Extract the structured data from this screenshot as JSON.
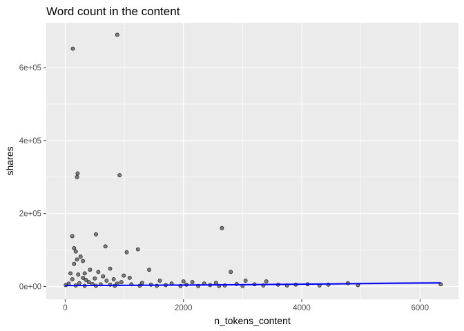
{
  "chart_data": {
    "type": "scatter",
    "title": "Word count in the content",
    "xlabel": "n_tokens_content",
    "ylabel": "shares",
    "xlim": [
      -320,
      6650
    ],
    "ylim": [
      -35000,
      723000
    ],
    "x_ticks": [
      0,
      2000,
      4000,
      6000
    ],
    "x_tick_labels": [
      "0",
      "2000",
      "4000",
      "6000"
    ],
    "y_ticks": [
      0,
      200000,
      400000,
      600000
    ],
    "y_tick_labels": [
      "0e+00",
      "2e+05",
      "4e+05",
      "6e+05"
    ],
    "grid": true,
    "legend": "none",
    "colors": {
      "panel": "#ebebeb",
      "grid_major": "#ffffff",
      "point_fill": "#595959",
      "point_stroke": "#000000",
      "trend_line": "#0000ff",
      "ribbon": "#a3a3d6"
    },
    "points": [
      [
        880,
        690000
      ],
      [
        130,
        652000
      ],
      [
        210,
        310000
      ],
      [
        200,
        300000
      ],
      [
        920,
        305000
      ],
      [
        2650,
        160000
      ],
      [
        520,
        143000
      ],
      [
        120,
        138000
      ],
      [
        680,
        110000
      ],
      [
        1230,
        102000
      ],
      [
        150,
        105000
      ],
      [
        180,
        96000
      ],
      [
        1040,
        94000
      ],
      [
        260,
        82000
      ],
      [
        200,
        74000
      ],
      [
        300,
        70000
      ],
      [
        150,
        62000
      ],
      [
        760,
        49000
      ],
      [
        1420,
        46000
      ],
      [
        2800,
        40000
      ],
      [
        560,
        40000
      ],
      [
        420,
        46000
      ],
      [
        330,
        36000
      ],
      [
        990,
        30000
      ],
      [
        90,
        36000
      ],
      [
        220,
        33000
      ],
      [
        640,
        28000
      ],
      [
        300,
        24000
      ],
      [
        1090,
        24000
      ],
      [
        500,
        22000
      ],
      [
        820,
        20000
      ],
      [
        1600,
        16000
      ],
      [
        2000,
        14000
      ],
      [
        2150,
        12000
      ],
      [
        3050,
        16000
      ],
      [
        3400,
        14000
      ],
      [
        2550,
        10000
      ],
      [
        120,
        20000
      ],
      [
        350,
        18000
      ],
      [
        700,
        16000
      ],
      [
        400,
        12000
      ],
      [
        950,
        12000
      ],
      [
        1300,
        10000
      ],
      [
        1800,
        8000
      ],
      [
        2350,
        8000
      ],
      [
        2900,
        7000
      ],
      [
        3200,
        6000
      ],
      [
        3600,
        5000
      ],
      [
        3900,
        5000
      ],
      [
        4100,
        6000
      ],
      [
        4450,
        5000
      ],
      [
        4780,
        9000
      ],
      [
        4950,
        4000
      ],
      [
        6350,
        6000
      ],
      [
        60,
        8000
      ],
      [
        10,
        4000
      ],
      [
        240,
        9000
      ],
      [
        460,
        7000
      ],
      [
        600,
        6000
      ],
      [
        760,
        5000
      ],
      [
        880,
        8000
      ],
      [
        1120,
        6000
      ],
      [
        1450,
        5000
      ],
      [
        1700,
        4000
      ],
      [
        2050,
        5000
      ],
      [
        2450,
        4000
      ],
      [
        2700,
        3000
      ],
      [
        3350,
        3000
      ],
      [
        3750,
        3000
      ],
      [
        4300,
        3000
      ],
      [
        180,
        3000
      ],
      [
        330,
        2000
      ],
      [
        520,
        2000
      ],
      [
        840,
        2000
      ],
      [
        1260,
        2000
      ],
      [
        1550,
        2000
      ],
      [
        1950,
        1500
      ],
      [
        2250,
        1500
      ],
      [
        2600,
        1500
      ],
      [
        3000,
        1500
      ]
    ],
    "trend": [
      [
        0,
        2500
      ],
      [
        1500,
        3500
      ],
      [
        3000,
        5000
      ],
      [
        4500,
        7000
      ],
      [
        5500,
        9000
      ],
      [
        6350,
        10000
      ]
    ]
  }
}
